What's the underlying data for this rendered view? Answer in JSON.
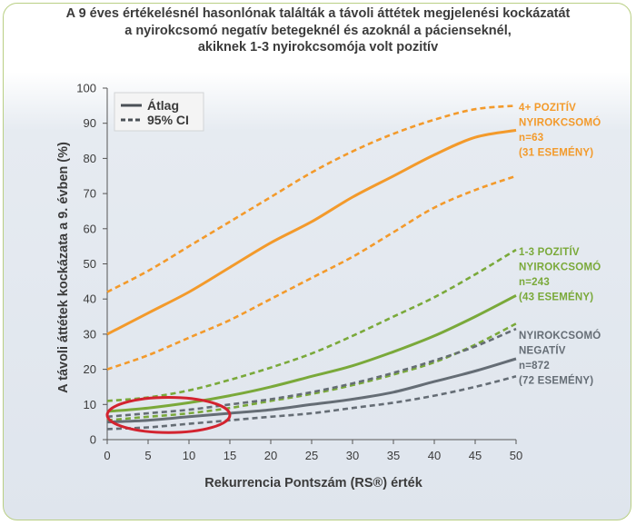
{
  "title_lines": [
    "A 9 éves értékelésnél hasonlónak találták a távoli áttétek megjelenési kockázatát",
    "a nyirokcsomó negatív betegeknél és azoknál a pácienseknél,",
    "akiknek 1-3 nyirokcsomója volt pozitív"
  ],
  "chart_data": {
    "type": "line",
    "xlabel": "Rekurrencia Pontszám (RS®) érték",
    "ylabel": "A távoli áttétek kockázata a 9. évben (%)",
    "xlim": [
      0,
      50
    ],
    "ylim": [
      0,
      100
    ],
    "xticks": [
      "0",
      "5",
      "10",
      "15",
      "20",
      "25",
      "30",
      "35",
      "40",
      "45",
      "50"
    ],
    "yticks": [
      "0",
      "10",
      "20",
      "30",
      "40",
      "50",
      "60",
      "70",
      "80",
      "90",
      "100"
    ],
    "grid": false,
    "legend": {
      "position": "top-left",
      "items": [
        {
          "label": "Átlag",
          "style": "solid"
        },
        {
          "label": "95% CI",
          "style": "dashed"
        }
      ]
    },
    "x": [
      0,
      5,
      10,
      15,
      20,
      25,
      30,
      35,
      40,
      45,
      50
    ],
    "groups": [
      {
        "color": "#f39a2b",
        "annotation": [
          "4+ POZITÍV",
          "NYIROKCSOMÓ",
          "n=63",
          "(31 ESEMÉNY)"
        ],
        "mean": [
          30,
          36,
          42,
          49,
          56,
          62,
          69,
          75,
          81,
          86,
          88
        ],
        "ci_upper": [
          42,
          48,
          55,
          62,
          69,
          76,
          82,
          87,
          91,
          94,
          95
        ],
        "ci_lower": [
          20,
          24,
          29,
          34,
          40,
          46,
          52,
          59,
          66,
          71,
          75
        ]
      },
      {
        "color": "#7aa93a",
        "annotation": [
          "1-3 POZITÍV",
          "NYIROKCSOMÓ",
          "n=243",
          "(43 ESEMÉNY)"
        ],
        "mean": [
          8,
          9,
          10.5,
          12.5,
          15,
          18,
          21,
          25,
          29.5,
          35,
          41
        ],
        "ci_upper": [
          11,
          12,
          14,
          17,
          20.5,
          24.5,
          29.5,
          35,
          40.5,
          47,
          54
        ],
        "ci_lower": [
          5.5,
          6.5,
          7.5,
          9,
          11,
          13,
          15.5,
          18.5,
          22,
          27,
          33
        ]
      },
      {
        "color": "#656d75",
        "annotation": [
          "NYIROKCSOMÓ",
          "NEGATÍV",
          "n=872",
          "(72 ESEMÉNY)"
        ],
        "mean": [
          5,
          5.5,
          6.5,
          7.5,
          8.5,
          10,
          11.5,
          13.5,
          16.5,
          19.5,
          23
        ],
        "ci_upper": [
          6.5,
          7.5,
          8.5,
          10,
          11.5,
          13.5,
          16,
          19,
          22.5,
          26.5,
          31.5
        ],
        "ci_lower": [
          3,
          3.5,
          4.5,
          5.5,
          6.5,
          7.5,
          9,
          10.5,
          12.5,
          15,
          18
        ]
      }
    ],
    "highlight": {
      "shape": "ellipse",
      "color": "#d3232f",
      "x_range": [
        0,
        15
      ],
      "y_range": [
        2,
        12
      ]
    }
  }
}
